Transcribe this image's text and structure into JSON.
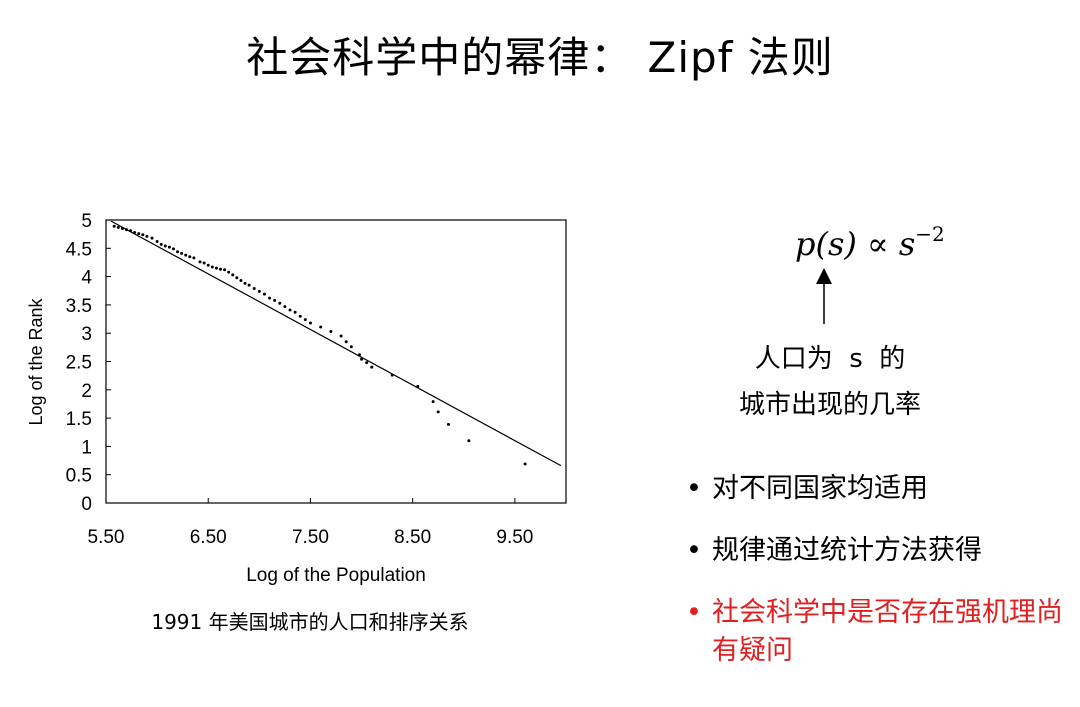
{
  "title": "社会科学中的幂律： Zipf 法则",
  "chart_data": {
    "type": "scatter",
    "xlabel": "Log of the Population",
    "ylabel": "Log of the Rank",
    "xlim": [
      5.5,
      10.0
    ],
    "ylim": [
      0,
      5
    ],
    "xticks": [
      "5.50",
      "6.50",
      "7.50",
      "8.50",
      "9.50"
    ],
    "xtick_values": [
      5.5,
      6.5,
      7.5,
      8.5,
      9.5
    ],
    "yticks": [
      "0",
      "0.5",
      "1",
      "1.5",
      "2",
      "2.5",
      "3",
      "3.5",
      "4",
      "4.5",
      "5"
    ],
    "ytick_values": [
      0,
      0.5,
      1,
      1.5,
      2,
      2.5,
      3,
      3.5,
      4,
      4.5,
      5
    ],
    "fit_line": {
      "x": [
        5.55,
        9.95
      ],
      "y": [
        4.98,
        0.66
      ]
    },
    "points": [
      [
        5.58,
        4.89
      ],
      [
        5.62,
        4.87
      ],
      [
        5.66,
        4.85
      ],
      [
        5.7,
        4.83
      ],
      [
        5.74,
        4.81
      ],
      [
        5.78,
        4.78
      ],
      [
        5.82,
        4.76
      ],
      [
        5.86,
        4.74
      ],
      [
        5.9,
        4.71
      ],
      [
        5.95,
        4.68
      ],
      [
        6.0,
        4.62
      ],
      [
        6.04,
        4.57
      ],
      [
        6.08,
        4.54
      ],
      [
        6.12,
        4.52
      ],
      [
        6.16,
        4.49
      ],
      [
        6.2,
        4.44
      ],
      [
        6.24,
        4.41
      ],
      [
        6.28,
        4.38
      ],
      [
        6.32,
        4.35
      ],
      [
        6.36,
        4.33
      ],
      [
        6.42,
        4.26
      ],
      [
        6.46,
        4.24
      ],
      [
        6.5,
        4.2
      ],
      [
        6.54,
        4.17
      ],
      [
        6.58,
        4.15
      ],
      [
        6.62,
        4.13
      ],
      [
        6.66,
        4.12
      ],
      [
        6.7,
        4.08
      ],
      [
        6.74,
        4.03
      ],
      [
        6.78,
        3.98
      ],
      [
        6.82,
        3.93
      ],
      [
        6.86,
        3.88
      ],
      [
        6.9,
        3.85
      ],
      [
        6.95,
        3.79
      ],
      [
        7.0,
        3.74
      ],
      [
        7.05,
        3.69
      ],
      [
        7.1,
        3.62
      ],
      [
        7.15,
        3.58
      ],
      [
        7.2,
        3.53
      ],
      [
        7.25,
        3.47
      ],
      [
        7.3,
        3.41
      ],
      [
        7.35,
        3.37
      ],
      [
        7.4,
        3.3
      ],
      [
        7.45,
        3.24
      ],
      [
        7.5,
        3.18
      ],
      [
        7.6,
        3.11
      ],
      [
        7.7,
        3.03
      ],
      [
        7.8,
        2.95
      ],
      [
        7.85,
        2.85
      ],
      [
        7.9,
        2.76
      ],
      [
        7.98,
        2.62
      ],
      [
        8.0,
        2.54
      ],
      [
        8.05,
        2.48
      ],
      [
        8.1,
        2.4
      ],
      [
        8.3,
        2.26
      ],
      [
        8.55,
        2.06
      ],
      [
        8.7,
        1.79
      ],
      [
        8.75,
        1.61
      ],
      [
        8.85,
        1.39
      ],
      [
        9.05,
        1.1
      ],
      [
        9.6,
        0.69
      ]
    ]
  },
  "caption": "1991 年美国城市的人口和排序关系",
  "formula": {
    "lhs": "p(s)",
    "rel": "∝",
    "base": "s",
    "exponent": "−2"
  },
  "formula_note": {
    "line1": "人口为  s  的",
    "line2": "城市出现的几率"
  },
  "bullets": [
    {
      "marker": "•",
      "text": "对不同国家均适用"
    },
    {
      "marker": "•",
      "text": "规律通过统计方法获得"
    },
    {
      "marker": "•",
      "text": "社会科学中是否存在强机理尚有疑问"
    }
  ],
  "colors": {
    "highlight": "#e02020",
    "text": "#000000"
  }
}
